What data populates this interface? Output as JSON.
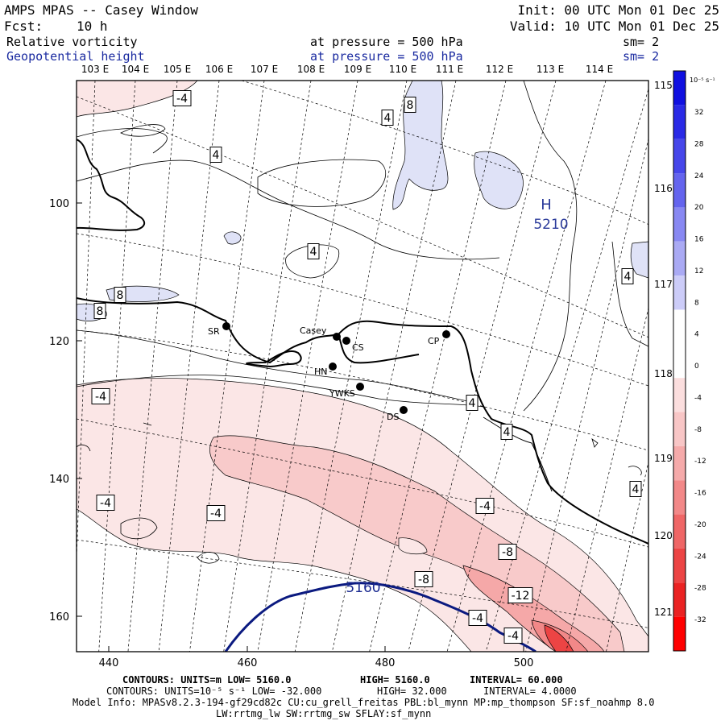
{
  "header": {
    "title": "AMPS MPAS -- Casey Window",
    "fcst_label": "Fcst:",
    "fcst_value": "10 h",
    "init": "Init: 00 UTC Mon 01 Dec 25",
    "valid": "Valid: 10 UTC Mon 01 Dec 25",
    "field1_name": "Relative vorticity",
    "field1_level": "at pressure =  500 hPa",
    "field1_sm": "sm= 2",
    "field2_name": "Geopotential height",
    "field2_level": "at pressure =  500 hPa",
    "field2_sm": "sm= 2"
  },
  "map": {
    "lon_top_labels": [
      "103 E",
      "104 E",
      "105 E",
      "106 E",
      "107 E",
      "108 E",
      "109 E",
      "110 E",
      "111 E",
      "112 E",
      "113 E",
      "114 E"
    ],
    "lon_right_labels": [
      "115 E",
      "116 E",
      "117 E",
      "118 E",
      "119 E",
      "120 E",
      "121 E"
    ],
    "x_ticks": [
      "440",
      "460",
      "480",
      "500"
    ],
    "y_ticks": [
      "100",
      "120",
      "140",
      "160"
    ],
    "stations": [
      {
        "name": "SR"
      },
      {
        "name": "Casey"
      },
      {
        "name": "CS"
      },
      {
        "name": "CP"
      },
      {
        "name": "HN"
      },
      {
        "name": "YWKS"
      },
      {
        "name": "DS"
      }
    ],
    "contour_labels": [
      "-4",
      "8",
      "4",
      "4",
      "4",
      "8",
      "8",
      "4",
      "-4",
      "4",
      "4",
      "4",
      "-4",
      "-4",
      "-4",
      "-8",
      "-8",
      "-12",
      "-4",
      "-4"
    ],
    "high_letter": "H",
    "high_value": "5210",
    "height_label": "5160"
  },
  "colorbar": {
    "units": "10⁻⁵ s⁻¹",
    "labels": [
      "32",
      "28",
      "24",
      "20",
      "16",
      "12",
      "8",
      "4",
      "0",
      "-4",
      "-8",
      "-12",
      "-16",
      "-20",
      "-24",
      "-28",
      "-32"
    ],
    "colors": [
      "#1010e0",
      "#2a2ae6",
      "#4646ea",
      "#6464ee",
      "#8888f2",
      "#aaaaf4",
      "#ccccf8",
      "#ffffff",
      "#ffffff",
      "#fbdede",
      "#f8c6c6",
      "#f5aaaa",
      "#f28888",
      "#ef6666",
      "#ec4444",
      "#ea2222",
      "#ff0000"
    ]
  },
  "footer": {
    "line1_a": "CONTOURS:  UNITS=m  LOW=  5160.0",
    "line1_b": "HIGH=  5160.0",
    "line1_c": "INTERVAL=  60.000",
    "line2_a": "CONTOURS:  UNITS=10⁻⁵ s⁻¹  LOW= -32.000",
    "line2_b": "HIGH=  32.000",
    "line2_c": "INTERVAL=   4.0000",
    "line3": "Model Info: MPASv8.2.3-194-gf29cd82c CU:cu_grell_freitas PBL:bl_mynn MP:mp_thompson SF:sf_noahmp 8.0",
    "line4": "LW:rrtmg_lw SW:rrtmg_sw SFLAY:sf_mynn"
  }
}
